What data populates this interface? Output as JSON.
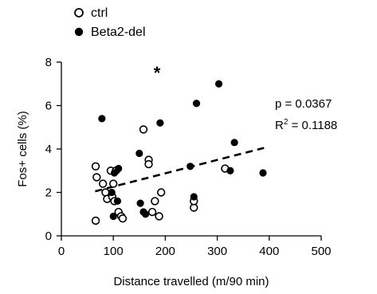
{
  "chart_data": {
    "type": "scatter",
    "xlabel": "Distance travelled (m/90 min)",
    "ylabel": "Fos+ cells (%)",
    "xlim": [
      0,
      500
    ],
    "ylim": [
      0,
      8
    ],
    "xticks": [
      "0",
      "100",
      "200",
      "300",
      "400",
      "500"
    ],
    "yticks": [
      "0",
      "2",
      "4",
      "6",
      "8"
    ],
    "legend_position": "top-left",
    "grid": false,
    "significance_marker": "*",
    "stats": {
      "p_text": "p = 0.0367",
      "r2_base": "R",
      "r2_sup": "2",
      "r2_rest": " = 0.1188"
    },
    "trendline": {
      "style": "dashed",
      "points": [
        [
          65,
          2.05
        ],
        [
          390,
          4.05
        ]
      ]
    },
    "series": [
      {
        "name": "ctrl",
        "marker": "open-circle",
        "points": [
          [
            66,
            0.7
          ],
          [
            66,
            3.2
          ],
          [
            68,
            2.7
          ],
          [
            80,
            2.4
          ],
          [
            85,
            2.0
          ],
          [
            88,
            1.7
          ],
          [
            95,
            3.0
          ],
          [
            98,
            1.8
          ],
          [
            100,
            2.4
          ],
          [
            102,
            1.6
          ],
          [
            105,
            3.0
          ],
          [
            110,
            1.1
          ],
          [
            115,
            0.9
          ],
          [
            118,
            0.8
          ],
          [
            158,
            4.9
          ],
          [
            168,
            3.5
          ],
          [
            168,
            3.3
          ],
          [
            175,
            1.1
          ],
          [
            180,
            1.6
          ],
          [
            188,
            0.9
          ],
          [
            192,
            2.0
          ],
          [
            255,
            1.3
          ],
          [
            255,
            1.6
          ],
          [
            315,
            3.1
          ]
        ]
      },
      {
        "name": "Beta2-del",
        "marker": "filled-circle",
        "points": [
          [
            78,
            5.4
          ],
          [
            97,
            2.0
          ],
          [
            100,
            0.9
          ],
          [
            102,
            2.9
          ],
          [
            108,
            1.6
          ],
          [
            110,
            3.1
          ],
          [
            150,
            3.8
          ],
          [
            152,
            1.5
          ],
          [
            158,
            1.1
          ],
          [
            162,
            1.0
          ],
          [
            190,
            5.2
          ],
          [
            248,
            3.2
          ],
          [
            255,
            1.8
          ],
          [
            260,
            6.1
          ],
          [
            303,
            7.0
          ],
          [
            325,
            3.0
          ],
          [
            333,
            4.3
          ],
          [
            388,
            2.9
          ]
        ]
      }
    ]
  }
}
